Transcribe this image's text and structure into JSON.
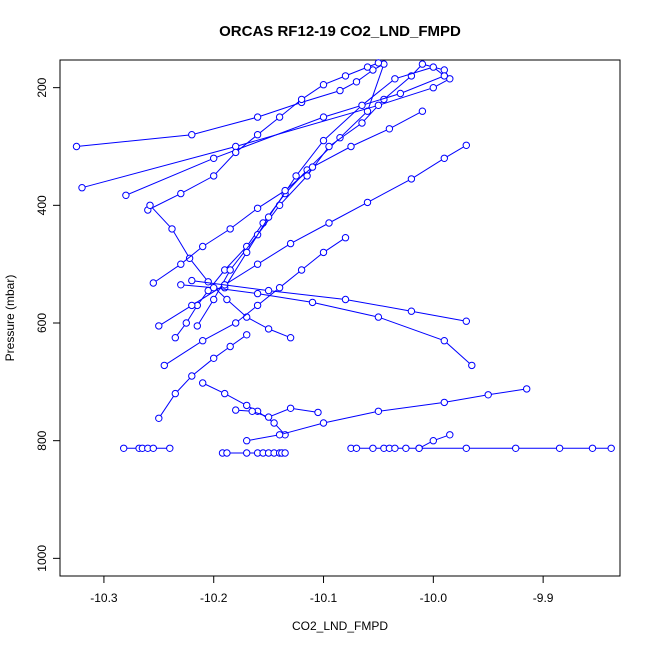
{
  "chart_data": {
    "type": "line",
    "title": "ORCAS RF12-19 CO2_LND_FMPD",
    "xlabel": "CO2_LND_FMPD",
    "ylabel": "Pressure (mbar)",
    "xlim": [
      -10.34,
      -9.83
    ],
    "ylim": [
      1030,
      153
    ],
    "y_axis_inverted": true,
    "x_ticks": [
      -10.3,
      -10.2,
      -10.1,
      -10.0,
      -9.9
    ],
    "x_tick_labels": [
      "-10.3",
      "-10.2",
      "-10.1",
      "-10.0",
      "-9.9"
    ],
    "y_ticks": [
      200,
      400,
      600,
      800,
      1000
    ],
    "y_tick_labels": [
      "200",
      "400",
      "600",
      "800",
      "1000"
    ],
    "series_color": "#0000ff",
    "marker": "open-circle",
    "grid": false,
    "legend": "none",
    "series": [
      {
        "x": [
          -10.325,
          -10.22,
          -10.16,
          -10.12,
          -10.085,
          -10.07,
          -10.055,
          -10.045,
          -10.06,
          -10.085,
          -10.115,
          -10.135,
          -10.155,
          -10.17,
          -10.19,
          -10.205,
          -10.215,
          -10.225,
          -10.235
        ],
        "y": [
          300,
          280,
          250,
          225,
          205,
          190,
          170,
          160,
          240,
          285,
          340,
          380,
          430,
          470,
          510,
          545,
          570,
          600,
          625
        ]
      },
      {
        "x": [
          -10.32,
          -10.18,
          -10.05,
          -10.0,
          -9.985,
          -9.99,
          -10.01,
          -10.02,
          -10.045,
          -10.065,
          -10.095,
          -10.115,
          -10.14,
          -10.16,
          -10.185,
          -10.2,
          -10.215
        ],
        "y": [
          370,
          300,
          230,
          200,
          185,
          170,
          160,
          180,
          220,
          260,
          300,
          350,
          400,
          450,
          510,
          560,
          605
        ]
      },
      {
        "x": [
          -10.28,
          -10.2,
          -10.1,
          -10.03,
          -9.99,
          -10.0,
          -10.035,
          -10.065,
          -10.1,
          -10.125,
          -10.15,
          -10.17,
          -10.19
        ],
        "y": [
          383,
          320,
          250,
          210,
          180,
          165,
          185,
          230,
          290,
          350,
          420,
          480,
          540
        ]
      },
      {
        "x": [
          -10.26,
          -10.23,
          -10.2,
          -10.18,
          -10.16,
          -10.14,
          -10.12,
          -10.1,
          -10.08,
          -10.06,
          -10.05
        ],
        "y": [
          408,
          380,
          350,
          310,
          280,
          250,
          220,
          195,
          180,
          165,
          158
        ]
      },
      {
        "x": [
          -10.258,
          -10.238,
          -10.222,
          -10.205,
          -10.188,
          -10.17,
          -10.15,
          -10.13
        ],
        "y": [
          400,
          440,
          490,
          530,
          560,
          590,
          610,
          625
        ]
      },
      {
        "x": [
          -10.255,
          -10.23,
          -10.21,
          -10.185,
          -10.16,
          -10.135,
          -10.11,
          -10.075,
          -10.04,
          -10.01
        ],
        "y": [
          532,
          500,
          470,
          440,
          405,
          375,
          335,
          300,
          270,
          240
        ]
      },
      {
        "x": [
          -10.25,
          -10.22,
          -10.19,
          -10.16,
          -10.13,
          -10.095,
          -10.06,
          -10.02,
          -9.99,
          -9.97
        ],
        "y": [
          605,
          570,
          535,
          500,
          465,
          430,
          395,
          355,
          320,
          298
        ]
      },
      {
        "x": [
          -10.23,
          -10.2,
          -10.16,
          -10.11,
          -10.05,
          -9.99,
          -9.965
        ],
        "y": [
          535,
          540,
          550,
          565,
          590,
          630,
          672
        ]
      },
      {
        "x": [
          -10.22,
          -10.15,
          -10.08,
          -10.02,
          -9.97
        ],
        "y": [
          528,
          545,
          560,
          580,
          597
        ]
      },
      {
        "x": [
          -10.245,
          -10.21,
          -10.18,
          -10.16,
          -10.14,
          -10.12,
          -10.1,
          -10.08
        ],
        "y": [
          672,
          630,
          600,
          570,
          540,
          510,
          480,
          455
        ]
      },
      {
        "x": [
          -10.25,
          -10.235,
          -10.22,
          -10.2,
          -10.185,
          -10.17
        ],
        "y": [
          762,
          720,
          690,
          660,
          640,
          620
        ]
      },
      {
        "x": [
          -10.21,
          -10.19,
          -10.17,
          -10.16,
          -10.145,
          -10.135
        ],
        "y": [
          702,
          720,
          740,
          750,
          770,
          790
        ]
      },
      {
        "x": [
          -10.18,
          -10.165,
          -10.15,
          -10.13,
          -10.105
        ],
        "y": [
          748,
          750,
          760,
          745,
          752
        ]
      },
      {
        "x": [
          -10.17,
          -10.14,
          -10.1,
          -10.05,
          -9.99,
          -9.95,
          -9.915
        ],
        "y": [
          800,
          790,
          770,
          750,
          735,
          722,
          712
        ]
      },
      {
        "x": [
          -10.282,
          -10.268,
          -10.265,
          -10.26,
          -10.255,
          -10.24
        ],
        "y": [
          813,
          813,
          813,
          813,
          813,
          813
        ]
      },
      {
        "x": [
          -10.075,
          -10.07,
          -10.055,
          -10.045,
          -10.04,
          -10.035,
          -10.025,
          -10.013,
          -9.97,
          -9.925,
          -9.885,
          -9.855,
          -9.838
        ],
        "y": [
          813,
          813,
          813,
          813,
          813,
          813,
          813,
          813,
          813,
          813,
          813,
          813,
          813
        ]
      },
      {
        "x": [
          -10.013,
          -10.0,
          -9.985
        ],
        "y": [
          813,
          800,
          790
        ]
      },
      {
        "x": [
          -10.192,
          -10.188,
          -10.17,
          -10.16,
          -10.155,
          -10.15,
          -10.145,
          -10.14,
          -10.138,
          -10.135
        ],
        "y": [
          821,
          821,
          821,
          821,
          821,
          821,
          821,
          821,
          821,
          821
        ]
      }
    ]
  }
}
